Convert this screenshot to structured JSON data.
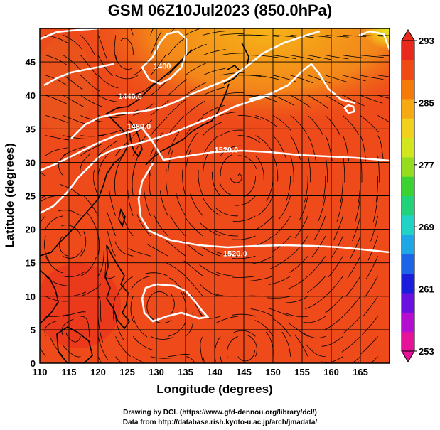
{
  "chart_data": {
    "type": "heatmap",
    "title": "GSM 06Z10Jul2023 (850.0hPa)",
    "xlabel": "Longitude (degrees)",
    "ylabel": "Latitude  (degrees)",
    "xlim": [
      110,
      170
    ],
    "ylim": [
      0,
      50
    ],
    "x_ticks": [
      "110",
      "115",
      "120",
      "125",
      "130",
      "135",
      "140",
      "145",
      "150",
      "155",
      "160",
      "165"
    ],
    "y_ticks": [
      "0",
      "5",
      "10",
      "15",
      "20",
      "25",
      "30",
      "35",
      "40",
      "45"
    ],
    "colorbar": {
      "range": [
        253,
        293
      ],
      "ticks": [
        "293",
        "285",
        "277",
        "269",
        "261",
        "253"
      ],
      "colors": [
        "#e6129a",
        "#b40fd0",
        "#6a10e0",
        "#1c1cdc",
        "#1e64e6",
        "#1fa6e6",
        "#21d2c6",
        "#22d27a",
        "#3cd232",
        "#96dc1e",
        "#d2e61e",
        "#f0d21e",
        "#f5aa14",
        "#f57a0a",
        "#f04a14",
        "#e82a1e"
      ]
    },
    "contours": [
      {
        "label": "1440.0",
        "lon": 125.5,
        "lat": 39.5
      },
      {
        "label": "1480.0",
        "lon": 127.0,
        "lat": 35.0
      },
      {
        "label": "1520.0",
        "lon": 142.0,
        "lat": 31.5
      },
      {
        "label": "1520.0",
        "lon": 143.5,
        "lat": 16.0
      },
      {
        "label": "1400",
        "lon": 131.0,
        "lat": 44.0
      }
    ],
    "grid": true,
    "field": "temperature (K) with geopotential height contours and wind streamlines"
  },
  "credits": {
    "line1": "Drawing by DCL (https://www.gfd-dennou.org/library/dcl/)",
    "line2": "Data from http://database.rish.kyoto-u.ac.jp/arch/jmadata/"
  },
  "colors": {
    "field_base": "#ee4a1a",
    "field_warm_north": "#f5a614",
    "field_yellow": "#e2e21e",
    "contour": "#ffffff",
    "streamline": "#000000"
  }
}
